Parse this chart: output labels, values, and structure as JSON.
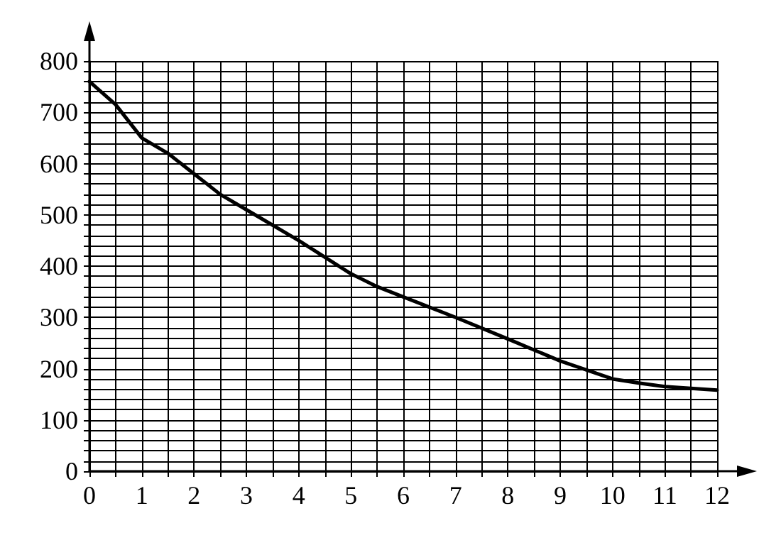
{
  "chart_data": {
    "type": "line",
    "x": [
      0,
      0.5,
      1,
      1.5,
      2,
      2.5,
      3,
      4,
      5,
      5.5,
      6,
      7,
      8,
      9,
      10,
      10.5,
      11,
      12
    ],
    "values": [
      760,
      715,
      650,
      620,
      580,
      540,
      510,
      450,
      385,
      360,
      340,
      300,
      258,
      215,
      180,
      172,
      165,
      158
    ],
    "color": "#000000",
    "xlim": [
      0,
      12
    ],
    "ylim": [
      0,
      800
    ],
    "xticks": [
      0,
      {
        "value": 0.5,
        "label": null
      },
      1,
      {
        "value": 1.5,
        "label": null
      },
      2,
      {
        "value": 2.5,
        "label": null
      },
      3,
      {
        "value": 3.5,
        "label": null
      },
      4,
      {
        "value": 4.5,
        "label": null
      },
      5,
      {
        "value": 5.5,
        "label": null
      },
      6,
      {
        "value": 6.5,
        "label": null
      },
      7,
      {
        "value": 7.5,
        "label": null
      },
      8,
      {
        "value": 8.5,
        "label": null
      },
      9,
      {
        "value": 9.5,
        "label": null
      },
      10,
      {
        "value": 10.5,
        "label": null
      },
      11,
      {
        "value": 11.5,
        "label": null
      },
      12
    ],
    "yticks": [
      0,
      {
        "value": 20,
        "label": null
      },
      {
        "value": 40,
        "label": null
      },
      {
        "value": 60,
        "label": null
      },
      {
        "value": 80,
        "label": null
      },
      100,
      {
        "value": 120,
        "label": null
      },
      {
        "value": 140,
        "label": null
      },
      {
        "value": 160,
        "label": null
      },
      {
        "value": 180,
        "label": null
      },
      200,
      {
        "value": 220,
        "label": null
      },
      {
        "value": 240,
        "label": null
      },
      {
        "value": 260,
        "label": null
      },
      {
        "value": 280,
        "label": null
      },
      300,
      {
        "value": 320,
        "label": null
      },
      {
        "value": 340,
        "label": null
      },
      {
        "value": 360,
        "label": null
      },
      {
        "value": 380,
        "label": null
      },
      400,
      {
        "value": 420,
        "label": null
      },
      {
        "value": 440,
        "label": null
      },
      {
        "value": 460,
        "label": null
      },
      {
        "value": 480,
        "label": null
      },
      500,
      {
        "value": 520,
        "label": null
      },
      {
        "value": 540,
        "label": null
      },
      {
        "value": 560,
        "label": null
      },
      {
        "value": 580,
        "label": null
      },
      600,
      {
        "value": 620,
        "label": null
      },
      {
        "value": 640,
        "label": null
      },
      {
        "value": 660,
        "label": null
      },
      {
        "value": 680,
        "label": null
      },
      700,
      {
        "value": 720,
        "label": null
      },
      {
        "value": 740,
        "label": null
      },
      {
        "value": 760,
        "label": null
      },
      {
        "value": 780,
        "label": null
      },
      800
    ],
    "grid": true,
    "marker": "none",
    "line_style": "solid"
  }
}
